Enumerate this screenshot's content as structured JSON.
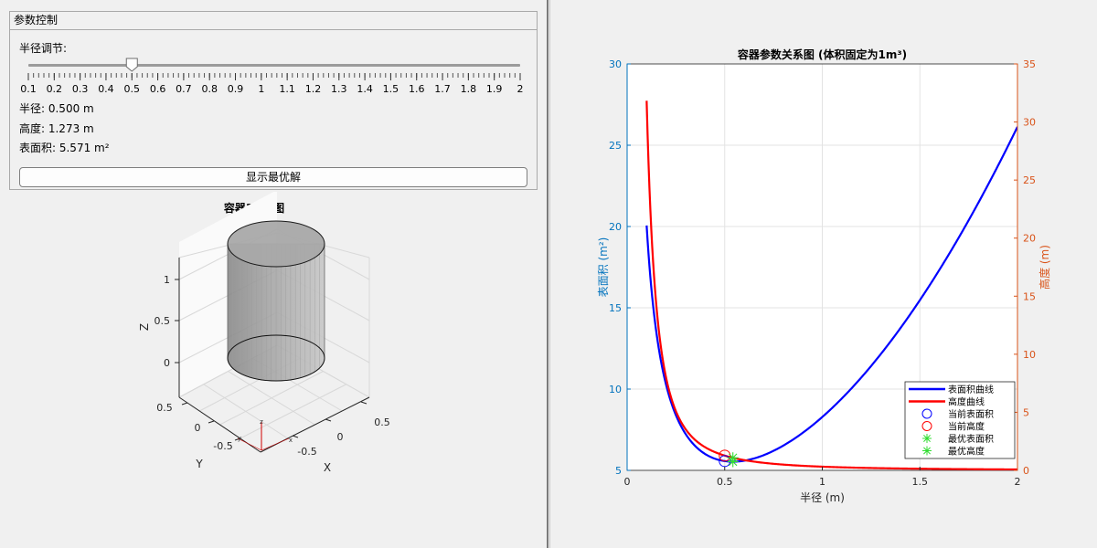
{
  "panel": {
    "title": "参数控制",
    "slider_label": "半径调节:",
    "slider": {
      "min": 0.1,
      "max": 2,
      "value": 0.5,
      "tick_labels": [
        "0.1",
        "0.2",
        "0.3",
        "0.4",
        "0.5",
        "0.6",
        "0.7",
        "0.8",
        "0.9",
        "1",
        "1.1",
        "1.2",
        "1.3",
        "1.4",
        "1.5",
        "1.6",
        "1.7",
        "1.8",
        "1.9",
        "2"
      ]
    },
    "radius_text": "半径: 0.500 m",
    "height_text": "高度: 1.273 m",
    "area_text": "表面积: 5.571 m²",
    "optimal_button": "显示最优解"
  },
  "view3d": {
    "title": "容器3D视图",
    "z_label": "Z",
    "y_label": "Y",
    "x_label": "X",
    "z_ticks": [
      "1",
      "0.5",
      "0"
    ],
    "y_ticks": [
      "0.5",
      "0",
      "-0.5"
    ],
    "x_ticks": [
      "0.5",
      "0",
      "-0.5"
    ],
    "axis_letter_z": "z",
    "axis_letter_y": "y",
    "axis_letter_x": "x"
  },
  "chart_data": {
    "type": "line",
    "title": "容器参数关系图 (体积固定为1m³)",
    "xlabel": "半径 (m)",
    "ylabel_left": "表面积 (m²)",
    "ylabel_right": "高度 (m)",
    "xlim": [
      0,
      2
    ],
    "ylim_left": [
      5,
      30
    ],
    "ylim_right": [
      0,
      35
    ],
    "x_ticks": [
      "0",
      "0.5",
      "1",
      "1.5",
      "2"
    ],
    "y_ticks_left": [
      "5",
      "10",
      "15",
      "20",
      "25",
      "30"
    ],
    "y_ticks_right": [
      "0",
      "5",
      "10",
      "15",
      "20",
      "25",
      "30",
      "35"
    ],
    "grid": true,
    "legend_position": "bottom-right",
    "series": [
      {
        "name": "表面积曲线",
        "axis": "left",
        "color": "#0000ff",
        "formula": "2*pi*r^2 + 2/r",
        "r_range": [
          0.1,
          2
        ]
      },
      {
        "name": "高度曲线",
        "axis": "right",
        "color": "#ff0000",
        "formula": "1/(pi*r^2)",
        "r_range": [
          0.1,
          2
        ]
      }
    ],
    "markers": [
      {
        "name": "当前表面积",
        "axis": "left",
        "x": 0.5,
        "y": 5.571,
        "symbol": "circle",
        "color": "#0000ff"
      },
      {
        "name": "当前高度",
        "axis": "right",
        "x": 0.5,
        "y": 1.273,
        "symbol": "circle",
        "color": "#ff0000"
      },
      {
        "name": "最优表面积",
        "axis": "left",
        "x": 0.542,
        "y": 5.536,
        "symbol": "star",
        "color": "#33dd33"
      },
      {
        "name": "最优高度",
        "axis": "right",
        "x": 0.542,
        "y": 1.084,
        "symbol": "star",
        "color": "#33dd33"
      }
    ],
    "left_axis_color": "#0072bd",
    "right_axis_color": "#d95319"
  }
}
